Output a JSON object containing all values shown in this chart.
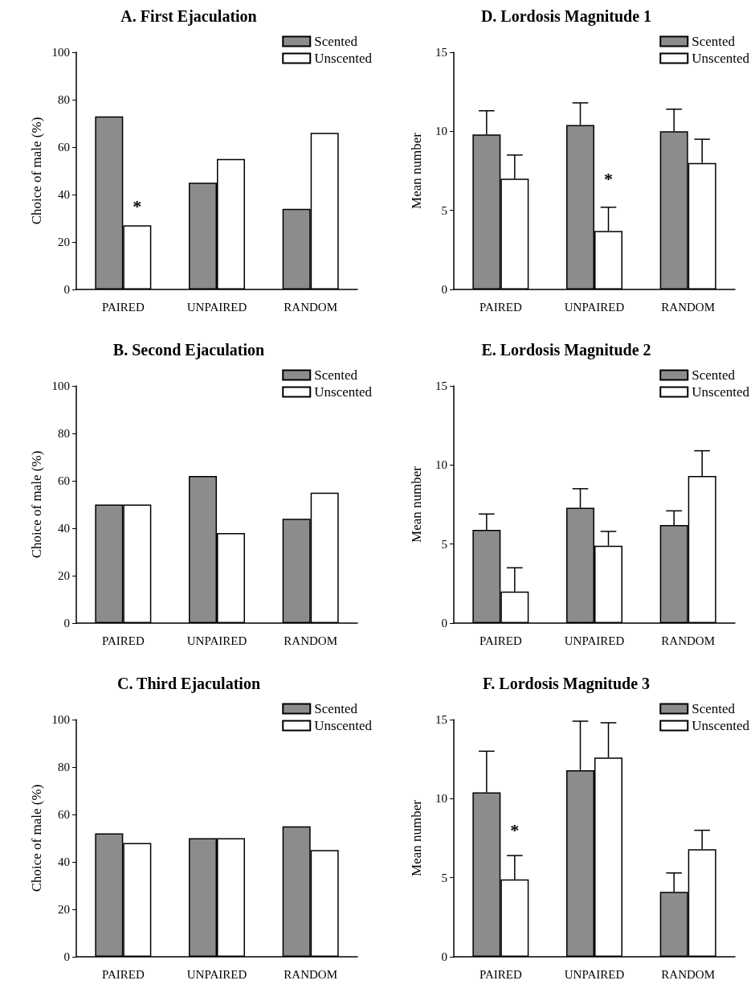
{
  "chart_data": [
    {
      "type": "bar",
      "title": "A. First Ejaculation",
      "ylabel": "Choice of male (%)",
      "categories": [
        "PAIRED",
        "UNPAIRED",
        "RANDOM"
      ],
      "series": [
        {
          "name": "Scented",
          "color": "#8c8c8c",
          "values": [
            73,
            45,
            34
          ]
        },
        {
          "name": "Unscented",
          "color": "#ffffff",
          "values": [
            27,
            55,
            66
          ]
        }
      ],
      "ylim": [
        0,
        100
      ],
      "yticks": [
        0,
        20,
        40,
        60,
        80,
        100
      ],
      "grid": false,
      "legend": "top right",
      "annotations": [
        {
          "text": "*",
          "x": "PAIRED",
          "y": 35
        }
      ]
    },
    {
      "type": "bar",
      "title": "D. Lordosis Magnitude 1",
      "ylabel": "Mean number",
      "categories": [
        "PAIRED",
        "UNPAIRED",
        "RANDOM"
      ],
      "series": [
        {
          "name": "Scented",
          "color": "#8c8c8c",
          "values": [
            9.8,
            10.4,
            10.0
          ],
          "errors": [
            [
              9.8,
              11.3
            ],
            [
              10.4,
              11.8
            ],
            [
              10.0,
              11.4
            ]
          ]
        },
        {
          "name": "Unscented",
          "color": "#ffffff",
          "values": [
            7.0,
            3.7,
            8.0
          ],
          "errors": [
            [
              7.0,
              8.5
            ],
            [
              3.7,
              5.2
            ],
            [
              8.0,
              9.5
            ]
          ]
        }
      ],
      "ylim": [
        0,
        15
      ],
      "yticks": [
        0,
        5,
        10,
        15
      ],
      "grid": false,
      "legend": "top right",
      "annotations": [
        {
          "text": "*",
          "x": "UNPAIRED",
          "y": 7
        }
      ]
    },
    {
      "type": "bar",
      "title": "B. Second Ejaculation",
      "ylabel": "Choice of male (%)",
      "categories": [
        "PAIRED",
        "UNPAIRED",
        "RANDOM"
      ],
      "series": [
        {
          "name": "Scented",
          "color": "#8c8c8c",
          "values": [
            50,
            62,
            44
          ]
        },
        {
          "name": "Unscented",
          "color": "#ffffff",
          "values": [
            50,
            38,
            55
          ]
        }
      ],
      "ylim": [
        0,
        100
      ],
      "yticks": [
        0,
        20,
        40,
        60,
        80,
        100
      ],
      "grid": false,
      "legend": "top right"
    },
    {
      "type": "bar",
      "title": "E. Lordosis Magnitude 2",
      "ylabel": "Mean number",
      "categories": [
        "PAIRED",
        "UNPAIRED",
        "RANDOM"
      ],
      "series": [
        {
          "name": "Scented",
          "color": "#8c8c8c",
          "values": [
            5.9,
            7.3,
            6.2
          ],
          "errors": [
            [
              5.9,
              6.9
            ],
            [
              7.3,
              8.5
            ],
            [
              6.2,
              7.1
            ]
          ]
        },
        {
          "name": "Unscented",
          "color": "#ffffff",
          "values": [
            2.0,
            4.9,
            9.3
          ],
          "errors": [
            [
              2.0,
              3.5
            ],
            [
              4.9,
              5.8
            ],
            [
              9.3,
              10.9
            ]
          ]
        }
      ],
      "ylim": [
        0,
        15
      ],
      "yticks": [
        0,
        5,
        10,
        15
      ],
      "grid": false,
      "legend": "top right"
    },
    {
      "type": "bar",
      "title": "C. Third Ejaculation",
      "ylabel": "Choice of male (%)",
      "categories": [
        "PAIRED",
        "UNPAIRED",
        "RANDOM"
      ],
      "series": [
        {
          "name": "Scented",
          "color": "#8c8c8c",
          "values": [
            52,
            50,
            55
          ]
        },
        {
          "name": "Unscented",
          "color": "#ffffff",
          "values": [
            48,
            50,
            45
          ]
        }
      ],
      "ylim": [
        0,
        100
      ],
      "yticks": [
        0,
        20,
        40,
        60,
        80,
        100
      ],
      "grid": false,
      "legend": "top right"
    },
    {
      "type": "bar",
      "title": "F. Lordosis Magnitude 3",
      "ylabel": "Mean number",
      "categories": [
        "PAIRED",
        "UNPAIRED",
        "RANDOM"
      ],
      "series": [
        {
          "name": "Scented",
          "color": "#8c8c8c",
          "values": [
            10.4,
            11.8,
            4.1
          ],
          "errors": [
            [
              10.4,
              13.0
            ],
            [
              11.8,
              14.9
            ],
            [
              4.1,
              5.3
            ]
          ]
        },
        {
          "name": "Unscented",
          "color": "#ffffff",
          "values": [
            4.9,
            12.6,
            6.8
          ],
          "errors": [
            [
              4.9,
              6.4
            ],
            [
              12.6,
              14.8
            ],
            [
              6.8,
              8.0
            ]
          ]
        }
      ],
      "ylim": [
        0,
        15
      ],
      "yticks": [
        0,
        5,
        10,
        15
      ],
      "grid": false,
      "legend": "top right",
      "annotations": [
        {
          "text": "*",
          "x": "PAIRED",
          "y": 8
        }
      ]
    }
  ]
}
